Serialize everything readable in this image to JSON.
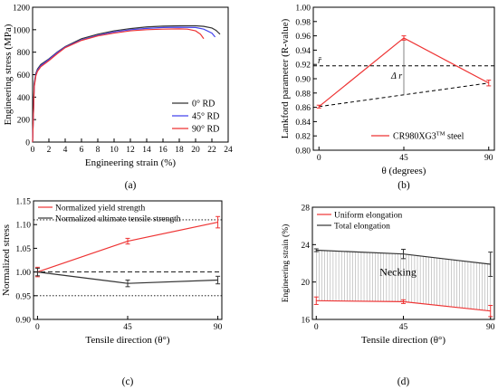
{
  "chart_data": [
    {
      "id": "a",
      "type": "line",
      "panel_label": "(a)",
      "xlabel": "Engineering strain (%)",
      "ylabel": "Engineering stress (MPa)",
      "xlim": [
        0,
        24
      ],
      "ylim": [
        0,
        1200
      ],
      "xticks": [
        0,
        2,
        4,
        6,
        8,
        10,
        12,
        14,
        16,
        18,
        20,
        22,
        24
      ],
      "yticks": [
        0,
        200,
        400,
        600,
        800,
        1000,
        1200
      ],
      "legend_position": "bottom-right",
      "series": [
        {
          "name": "0° RD",
          "color": "#333333",
          "x": [
            0,
            0.2,
            0.4,
            0.6,
            1,
            2,
            3,
            4,
            6,
            8,
            10,
            12,
            14,
            16,
            18,
            20,
            21,
            22,
            22.5,
            23
          ],
          "y": [
            0,
            520,
            610,
            650,
            690,
            740,
            800,
            850,
            920,
            960,
            990,
            1010,
            1025,
            1032,
            1035,
            1035,
            1030,
            1015,
            995,
            960
          ]
        },
        {
          "name": "45° RD",
          "color": "#4444ee",
          "x": [
            0,
            0.2,
            0.4,
            0.6,
            1,
            2,
            3,
            4,
            6,
            8,
            10,
            12,
            14,
            16,
            18,
            20,
            21,
            22,
            22.4
          ],
          "y": [
            0,
            500,
            600,
            640,
            680,
            735,
            795,
            845,
            910,
            950,
            980,
            1000,
            1012,
            1020,
            1022,
            1020,
            1005,
            970,
            935
          ]
        },
        {
          "name": "90° RD",
          "color": "#ee3333",
          "x": [
            0,
            0.2,
            0.4,
            0.6,
            1,
            2,
            3,
            4,
            6,
            8,
            10,
            12,
            14,
            16,
            18,
            19,
            20,
            20.6,
            21
          ],
          "y": [
            0,
            490,
            590,
            630,
            670,
            725,
            785,
            840,
            905,
            945,
            970,
            990,
            1000,
            1005,
            1008,
            1005,
            990,
            960,
            920
          ]
        }
      ]
    },
    {
      "id": "b",
      "type": "line",
      "panel_label": "(b)",
      "xlabel": "θ (degrees)",
      "ylabel": "Lankford parameter (R-value)",
      "xlim": [
        -3,
        93
      ],
      "ylim": [
        0.8,
        1.0
      ],
      "xticks": [
        0,
        45,
        90
      ],
      "yticks": [
        0.8,
        0.82,
        0.84,
        0.86,
        0.88,
        0.9,
        0.92,
        0.94,
        0.96,
        0.98,
        1.0
      ],
      "legend_position": "bottom-right",
      "series": [
        {
          "name": "CR980XG3",
          "name_sup": "TM",
          "name_suffix": " steel",
          "color": "#ee3333",
          "x": [
            0,
            45,
            90
          ],
          "y": [
            0.861,
            0.957,
            0.894
          ],
          "err": [
            0.002,
            0.003,
            0.004
          ]
        }
      ],
      "rbar_value": 0.918,
      "rbar_label": "r̄",
      "delta_label": "Δ r",
      "dashed_line": {
        "x": [
          0,
          90
        ],
        "y": [
          0.861,
          0.894
        ]
      }
    },
    {
      "id": "c",
      "type": "line",
      "panel_label": "(c)",
      "xlabel": "Tensile direction (θ°)",
      "ylabel": "Normalized stress",
      "xlim": [
        -2,
        92
      ],
      "ylim": [
        0.9,
        1.15
      ],
      "xticks": [
        0,
        45,
        90
      ],
      "yticks": [
        0.9,
        0.95,
        1.0,
        1.05,
        1.1,
        1.15
      ],
      "legend_position": "top-left",
      "reference_lines": [
        0.95,
        1.0,
        1.11
      ],
      "series": [
        {
          "name": "Normalized yield strength",
          "color": "#ee3333",
          "x": [
            0,
            45,
            90
          ],
          "y": [
            1.0,
            1.065,
            1.105
          ],
          "err": [
            0.01,
            0.006,
            0.012
          ]
        },
        {
          "name": "Normalized ultimate tensile strength",
          "color": "#333333",
          "x": [
            0,
            45,
            90
          ],
          "y": [
            1.0,
            0.976,
            0.983
          ],
          "err": [
            0.008,
            0.007,
            0.008
          ]
        }
      ]
    },
    {
      "id": "d",
      "type": "area",
      "panel_label": "(d)",
      "xlabel": "Tensile direction (θ°)",
      "ylabel": "Engineering strain (%)",
      "xlim": [
        -2,
        92
      ],
      "ylim": [
        16,
        28
      ],
      "xticks": [
        0,
        45,
        90
      ],
      "yticks": [
        16,
        20,
        24,
        28
      ],
      "legend_position": "top-left",
      "region_label": "Necking",
      "series": [
        {
          "name": "Uniform elongation",
          "color": "#ee3333",
          "x": [
            0,
            45,
            90
          ],
          "y": [
            18.0,
            17.9,
            16.9
          ],
          "err": [
            0.4,
            0.2,
            0.6
          ]
        },
        {
          "name": "Total elongation",
          "color": "#333333",
          "x": [
            0,
            45,
            90
          ],
          "y": [
            23.4,
            23.0,
            21.9
          ],
          "err": [
            0.15,
            0.5,
            1.3
          ]
        }
      ]
    }
  ]
}
